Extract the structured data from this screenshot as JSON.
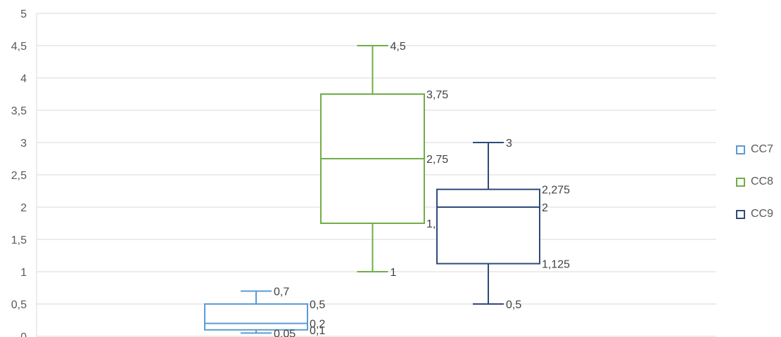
{
  "chart_data": {
    "type": "box",
    "title": "",
    "xlabel": "",
    "ylabel": "",
    "ylim": [
      0,
      5
    ],
    "y_ticks": [
      "0",
      "0,5",
      "1",
      "1,5",
      "2",
      "2,5",
      "3",
      "3,5",
      "4",
      "4,5",
      "5"
    ],
    "grid": true,
    "legend_position": "right",
    "series": [
      {
        "name": "CC7",
        "color": "#5B9BD5",
        "min": 0.05,
        "q1": 0.1,
        "median": 0.2,
        "q3": 0.5,
        "max": 0.7,
        "labels": {
          "min": "0,05",
          "q1": "0,1",
          "median": "0,2",
          "q3": "0,5",
          "max": "0,7"
        }
      },
      {
        "name": "CC8",
        "color": "#70AD47",
        "min": 1,
        "q1": 1.75,
        "median": 2.75,
        "q3": 3.75,
        "max": 4.5,
        "labels": {
          "min": "1",
          "q1": "1,75",
          "median": "2,75",
          "q3": "3,75",
          "max": "4,5"
        }
      },
      {
        "name": "CC9",
        "color": "#2F4A7A",
        "min": 0.5,
        "q1": 1.125,
        "median": 2,
        "q3": 2.275,
        "max": 3,
        "labels": {
          "min": "0,5",
          "q1": "1,125",
          "median": "2",
          "q3": "2,275",
          "max": "3"
        }
      }
    ]
  }
}
